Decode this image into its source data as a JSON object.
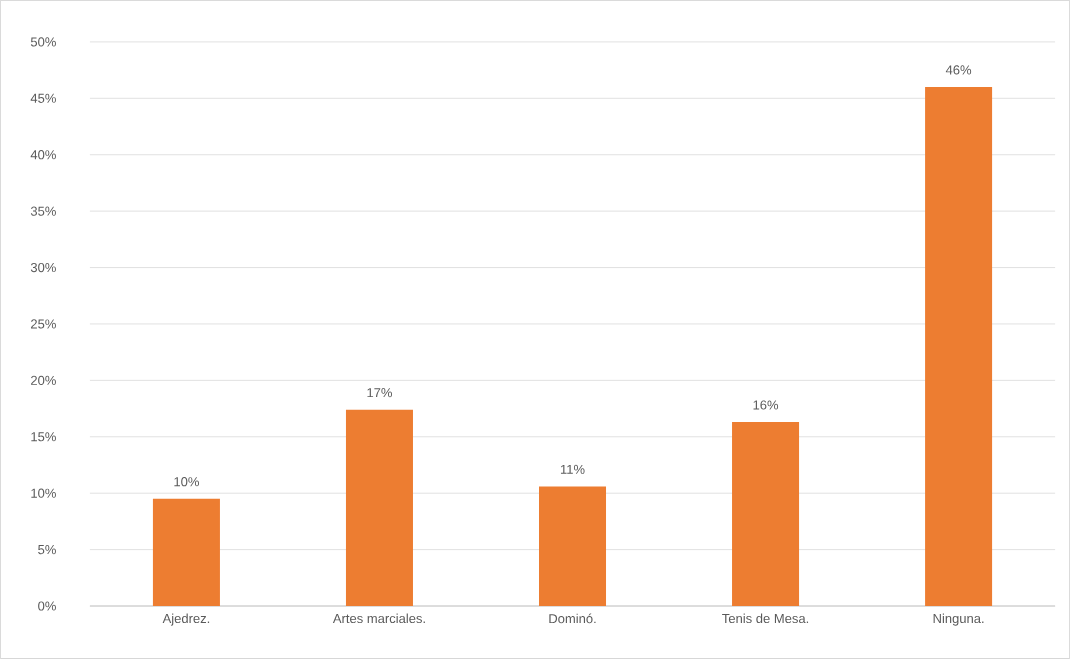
{
  "chart_data": {
    "type": "bar",
    "categories": [
      "Ajedrez.",
      "Artes marciales.",
      "Dominó.",
      "Tenis de Mesa.",
      "Ninguna."
    ],
    "values": [
      9.5,
      17.4,
      10.6,
      16.3,
      46.0
    ],
    "value_labels": [
      "10%",
      "17%",
      "11%",
      "16%",
      "46%"
    ],
    "color": "#ed7d31",
    "ylim": [
      0,
      50
    ],
    "yticks": [
      {
        "value": 0,
        "label": "0%"
      },
      {
        "value": 5,
        "label": "5%"
      },
      {
        "value": 10,
        "label": "10%"
      },
      {
        "value": 15,
        "label": "15%"
      },
      {
        "value": 20,
        "label": "20%"
      },
      {
        "value": 25,
        "label": "25%"
      },
      {
        "value": 30,
        "label": "30%"
      },
      {
        "value": 35,
        "label": "35%"
      },
      {
        "value": 40,
        "label": "40%"
      },
      {
        "value": 45,
        "label": "45%"
      },
      {
        "value": 50,
        "label": "50%"
      }
    ],
    "grid": "y"
  }
}
